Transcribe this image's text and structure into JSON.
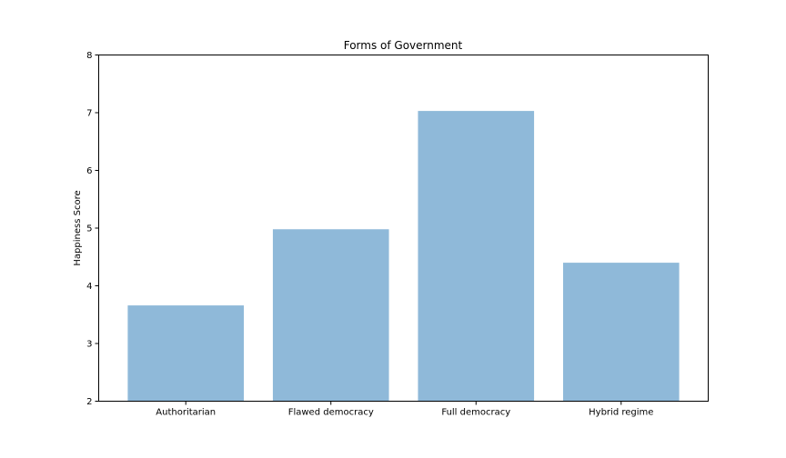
{
  "chart_data": {
    "type": "bar",
    "title": "Forms of Government",
    "xlabel": "",
    "ylabel": "Happiness Score",
    "categories": [
      "Authoritarian",
      "Flawed democracy",
      "Full democracy",
      "Hybrid regime"
    ],
    "values": [
      3.66,
      4.98,
      7.03,
      4.4
    ],
    "ylim": [
      2,
      8
    ],
    "yticks": [
      "2",
      "3",
      "4",
      "5",
      "6",
      "7",
      "8"
    ],
    "grid": false,
    "bar_color": "#8fb9d9"
  }
}
